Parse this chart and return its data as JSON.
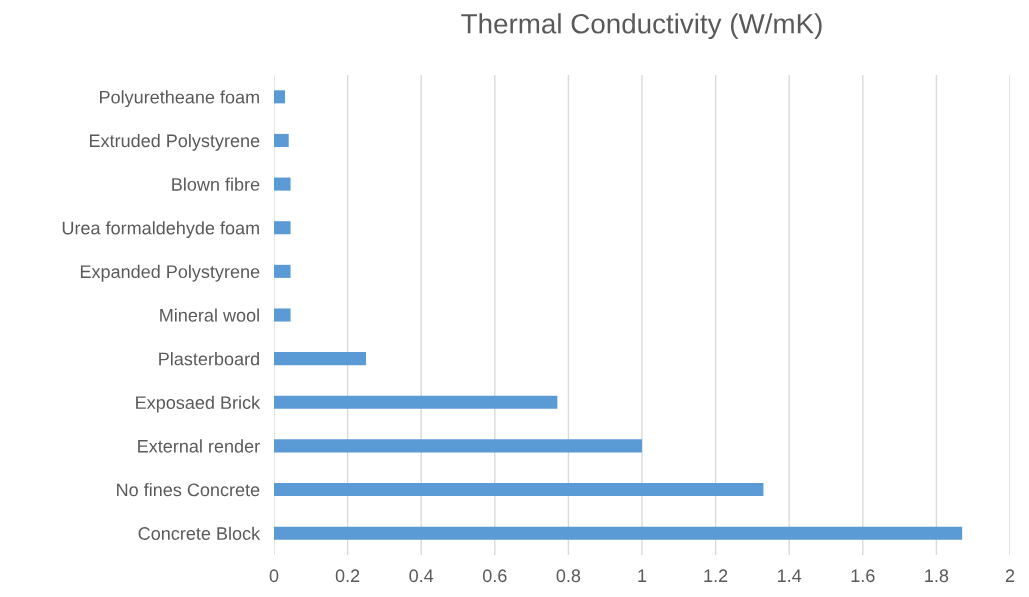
{
  "chart_data": {
    "type": "bar",
    "orientation": "horizontal",
    "title": "Thermal Conductivity (W/mK)",
    "categories": [
      "Polyuretheane foam",
      "Extruded Polystyrene",
      "Blown fibre",
      "Urea formaldehyde foam",
      "Expanded Polystyrene",
      "Mineral wool",
      "Plasterboard",
      "Exposaed Brick",
      "External render",
      "No fines Concrete",
      "Concrete Block"
    ],
    "values": [
      0.03,
      0.04,
      0.045,
      0.045,
      0.045,
      0.045,
      0.25,
      0.77,
      1.0,
      1.33,
      1.87
    ],
    "color": "#5b9bd5",
    "xlim": [
      0,
      2
    ],
    "xticks": [
      0,
      0.2,
      0.4,
      0.6,
      0.8,
      {
        "value": 1,
        "label": "1"
      },
      1.2,
      1.4,
      1.6,
      1.8,
      {
        "value": 2,
        "label": "2"
      }
    ],
    "grid": "x"
  }
}
